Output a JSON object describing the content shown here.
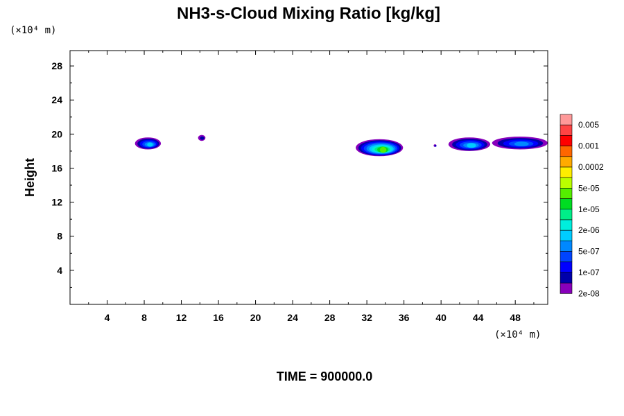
{
  "chart_data": {
    "type": "heatmap",
    "title": "NH3-s-Cloud Mixing Ratio [kg/kg]",
    "ylabel": "Height",
    "xlabel": "",
    "x_unit": "(×10⁴ m)",
    "y_unit": "(×10⁴ m)",
    "xlim": [
      0,
      51.5
    ],
    "ylim": [
      0,
      29.8
    ],
    "x_ticks": [
      4,
      8,
      12,
      16,
      20,
      24,
      28,
      32,
      36,
      40,
      44,
      48
    ],
    "x_tick_labels": [
      "4",
      "8",
      "12",
      "16",
      "20",
      "24",
      "28",
      "32",
      "36",
      "40",
      "44",
      "48"
    ],
    "y_ticks": [
      4,
      8,
      12,
      16,
      20,
      24,
      28
    ],
    "y_tick_labels": [
      "4",
      "8",
      "12",
      "16",
      "20",
      "24",
      "28"
    ],
    "colorbar": {
      "colors": [
        "#ff9999",
        "#ff4444",
        "#ff0000",
        "#ff6600",
        "#ffaa00",
        "#ffee00",
        "#bbff00",
        "#55ee00",
        "#00dd22",
        "#00ee88",
        "#00eedd",
        "#00ccff",
        "#0088ff",
        "#0044ff",
        "#0000ff",
        "#0000aa",
        "#8800bb"
      ],
      "labels": [
        "0.005",
        "0.001",
        "0.0002",
        "5e-05",
        "1e-05",
        "2e-06",
        "5e-07",
        "1e-07",
        "2e-08"
      ]
    },
    "cloud_regions": [
      {
        "x": [
          7.0,
          9.8
        ],
        "y": [
          18.2,
          19.6
        ],
        "peak_color": "#00ccff"
      },
      {
        "x": [
          13.8,
          14.6
        ],
        "y": [
          19.2,
          19.9
        ],
        "peak_color": "#0000aa"
      },
      {
        "x": [
          30.8,
          35.9
        ],
        "y": [
          17.4,
          19.4
        ],
        "peak_color": "#55ee00"
      },
      {
        "x": [
          39.2,
          39.5
        ],
        "y": [
          18.5,
          18.8
        ],
        "peak_color": "#0000ff"
      },
      {
        "x": [
          40.8,
          45.3
        ],
        "y": [
          18.0,
          19.6
        ],
        "peak_color": "#00ccff"
      },
      {
        "x": [
          45.5,
          51.5
        ],
        "y": [
          18.2,
          19.7
        ],
        "peak_color": "#0088ff"
      }
    ]
  },
  "footer": {
    "time_label": "TIME = 900000.0"
  }
}
